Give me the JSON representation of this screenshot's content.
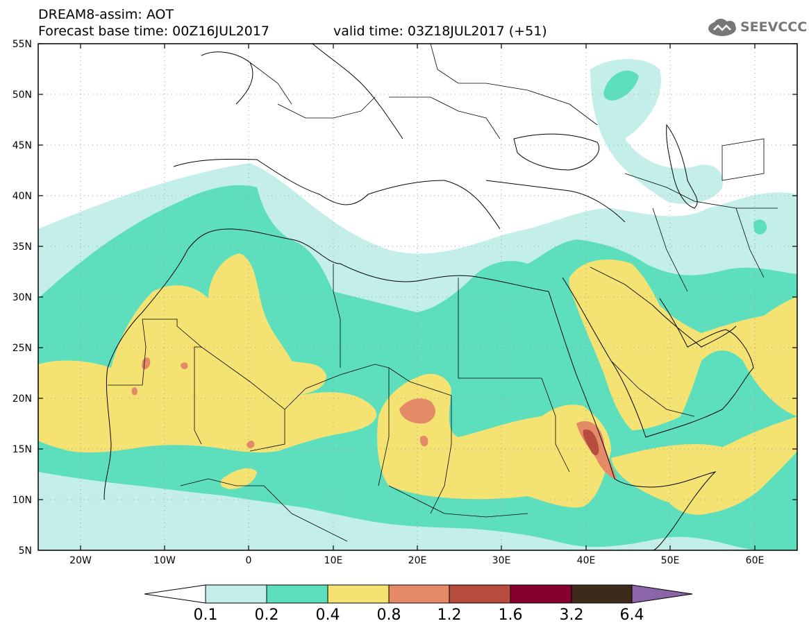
{
  "header": {
    "title_line1": "DREAM8-assim: AOT",
    "title_line2": "Forecast base time: 00Z16JUL2017",
    "valid_time": "valid time: 03Z18JUL2017 (+51)",
    "logo_text": "SEEVCCC",
    "logo_icon": "cloud-icon"
  },
  "map": {
    "projection": "lat-lon",
    "lon_range": [
      -25,
      65
    ],
    "lat_range": [
      5,
      55
    ],
    "lat_labels": [
      "55N",
      "50N",
      "45N",
      "40N",
      "35N",
      "30N",
      "25N",
      "20N",
      "15N",
      "10N",
      "5N"
    ],
    "lon_labels": [
      "20W",
      "10W",
      "0",
      "10E",
      "20E",
      "30E",
      "40E",
      "50E",
      "60E"
    ],
    "land_color": "#ffffff",
    "border_color": "#000000",
    "grid": "dotted"
  },
  "colorbar": {
    "levels": [
      "0.1",
      "0.2",
      "0.4",
      "0.8",
      "1.2",
      "1.6",
      "3.2",
      "6.4"
    ],
    "colors": [
      "#c4efe8",
      "#5ddfbe",
      "#f4e372",
      "#e58a67",
      "#b54c3e",
      "#85002a",
      "#3e2a1a",
      "#8c64a8"
    ],
    "lower_color": "#ffffff"
  }
}
